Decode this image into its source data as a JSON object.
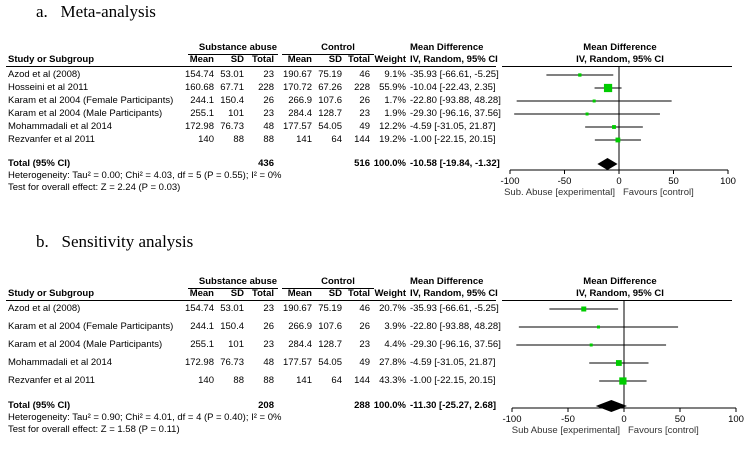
{
  "panels": [
    {
      "title": "a.   Meta-analysis",
      "group1_label": "Substance abuse",
      "group2_label": "Control",
      "md_header": "Mean Difference",
      "md_subheader": "IV, Random, 95% CI",
      "plot_header": "Mean Difference",
      "plot_subheader": "IV, Random, 95% CI",
      "col_headers": {
        "study": "Study or Subgroup",
        "mean1": "Mean",
        "sd1": "SD",
        "total1": "Total",
        "mean2": "Mean",
        "sd2": "SD",
        "total2": "Total",
        "weight": "Weight",
        "ci": "IV, Random, 95% CI"
      },
      "total_label": "Total (95% CI)",
      "total_n1": "436",
      "total_n2": "516",
      "total_weight": "100.0%",
      "total_ci": "-10.58 [-19.84, -1.32]",
      "heterogeneity": "Heterogeneity: Tau² = 0.00; Chi² = 4.03, df = 5 (P = 0.55); I² = 0%",
      "overall_effect": "Test for overall effect: Z = 2.24 (P = 0.03)",
      "axis_left_label": "Sub. Abuse [experimental]",
      "axis_right_label": "Favours [control]"
    },
    {
      "title": "b.   Sensitivity analysis",
      "group1_label": "Substance abuse",
      "group2_label": "Control",
      "md_header": "Mean Difference",
      "md_subheader": "IV, Random, 95% CI",
      "plot_header": "Mean Difference",
      "plot_subheader": "IV, Random, 95% CI",
      "col_headers": {
        "study": "Study or Subgroup",
        "mean1": "Mean",
        "sd1": "SD",
        "total1": "Total",
        "mean2": "Mean",
        "sd2": "SD",
        "total2": "Total",
        "weight": "Weight",
        "ci": "IV, Random, 95% CI"
      },
      "total_label": "Total (95% CI)",
      "total_n1": "208",
      "total_n2": "288",
      "total_weight": "100.0%",
      "total_ci": "-11.30 [-25.27, 2.68]",
      "heterogeneity": "Heterogeneity: Tau² = 0.90; Chi² = 4.01, df = 4 (P = 0.40); I² = 0%",
      "overall_effect": "Test for overall effect: Z = 1.58 (P = 0.11)",
      "axis_left_label": "Sub Abuse [experimental]",
      "axis_right_label": "Favours [control]"
    }
  ],
  "chart_data": [
    {
      "type": "forest",
      "title": "a. Meta-analysis",
      "xlim": [
        -100,
        100
      ],
      "ticks": [
        -100,
        -50,
        0,
        50,
        100
      ],
      "tick_labels": [
        "-100",
        "-50",
        "0",
        "50",
        "100"
      ],
      "studies": [
        {
          "name": "Azod et al (2008)",
          "mean1": "154.74",
          "sd1": "53.01",
          "n1": "23",
          "mean2": "190.67",
          "sd2": "75.19",
          "n2": "46",
          "weight": "9.1%",
          "ci_text": "-35.93 [-66.61, -5.25]",
          "md": -35.93,
          "lo": -66.61,
          "hi": -5.25,
          "w": 9.1
        },
        {
          "name": "Hosseini et al 2011",
          "mean1": "160.68",
          "sd1": "67.71",
          "n1": "228",
          "mean2": "170.72",
          "sd2": "67.26",
          "n2": "228",
          "weight": "55.9%",
          "ci_text": "-10.04 [-22.43, 2.35]",
          "md": -10.04,
          "lo": -22.43,
          "hi": 2.35,
          "w": 55.9
        },
        {
          "name": "Karam et al 2004 (Female Participants)",
          "mean1": "244.1",
          "sd1": "150.4",
          "n1": "26",
          "mean2": "266.9",
          "sd2": "107.6",
          "n2": "26",
          "weight": "1.7%",
          "ci_text": "-22.80 [-93.88, 48.28]",
          "md": -22.8,
          "lo": -93.88,
          "hi": 48.28,
          "w": 1.7
        },
        {
          "name": "Karam et al 2004 (Male Participants)",
          "mean1": "255.1",
          "sd1": "101",
          "n1": "23",
          "mean2": "284.4",
          "sd2": "128.7",
          "n2": "23",
          "weight": "1.9%",
          "ci_text": "-29.30 [-96.16, 37.56]",
          "md": -29.3,
          "lo": -96.16,
          "hi": 37.56,
          "w": 1.9
        },
        {
          "name": "Mohammadali et al 2014",
          "mean1": "172.98",
          "sd1": "76.73",
          "n1": "48",
          "mean2": "177.57",
          "sd2": "54.05",
          "n2": "49",
          "weight": "12.2%",
          "ci_text": "-4.59 [-31.05, 21.87]",
          "md": -4.59,
          "lo": -31.05,
          "hi": 21.87,
          "w": 12.2
        },
        {
          "name": "Rezvanfer et al 2011",
          "mean1": "140",
          "sd1": "88",
          "n1": "88",
          "mean2": "141",
          "sd2": "64",
          "n2": "144",
          "weight": "19.2%",
          "ci_text": "-1.00 [-22.15, 20.15]",
          "md": -1.0,
          "lo": -22.15,
          "hi": 20.15,
          "w": 19.2
        }
      ],
      "pooled": {
        "md": -10.58,
        "lo": -19.84,
        "hi": -1.32
      }
    },
    {
      "type": "forest",
      "title": "b. Sensitivity analysis",
      "xlim": [
        -100,
        100
      ],
      "ticks": [
        -100,
        -50,
        0,
        50,
        100
      ],
      "tick_labels": [
        "-100",
        "-50",
        "0",
        "50",
        "100"
      ],
      "studies": [
        {
          "name": "Azod et al (2008)",
          "mean1": "154.74",
          "sd1": "53.01",
          "n1": "23",
          "mean2": "190.67",
          "sd2": "75.19",
          "n2": "46",
          "weight": "20.7%",
          "ci_text": "-35.93 [-66.61, -5.25]",
          "md": -35.93,
          "lo": -66.61,
          "hi": -5.25,
          "w": 20.7
        },
        {
          "name": "Karam et al 2004 (Female Participants)",
          "mean1": "244.1",
          "sd1": "150.4",
          "n1": "26",
          "mean2": "266.9",
          "sd2": "107.6",
          "n2": "26",
          "weight": "3.9%",
          "ci_text": "-22.80 [-93.88, 48.28]",
          "md": -22.8,
          "lo": -93.88,
          "hi": 48.28,
          "w": 3.9
        },
        {
          "name": "Karam et al 2004 (Male Participants)",
          "mean1": "255.1",
          "sd1": "101",
          "n1": "23",
          "mean2": "284.4",
          "sd2": "128.7",
          "n2": "23",
          "weight": "4.4%",
          "ci_text": "-29.30 [-96.16, 37.56]",
          "md": -29.3,
          "lo": -96.16,
          "hi": 37.56,
          "w": 4.4
        },
        {
          "name": "Mohammadali et al 2014",
          "mean1": "172.98",
          "sd1": "76.73",
          "n1": "48",
          "mean2": "177.57",
          "sd2": "54.05",
          "n2": "49",
          "weight": "27.8%",
          "ci_text": "-4.59 [-31.05, 21.87]",
          "md": -4.59,
          "lo": -31.05,
          "hi": 21.87,
          "w": 27.8
        },
        {
          "name": "Rezvanfer et al 2011",
          "mean1": "140",
          "sd1": "88",
          "n1": "88",
          "mean2": "141",
          "sd2": "64",
          "n2": "144",
          "weight": "43.3%",
          "ci_text": "-1.00 [-22.15, 20.15]",
          "md": -1.0,
          "lo": -22.15,
          "hi": 20.15,
          "w": 43.3
        }
      ],
      "pooled": {
        "md": -11.3,
        "lo": -25.27,
        "hi": 2.68
      }
    }
  ],
  "colors": {
    "marker": "#00cc00",
    "diamond": "#000000",
    "line": "#000000"
  }
}
